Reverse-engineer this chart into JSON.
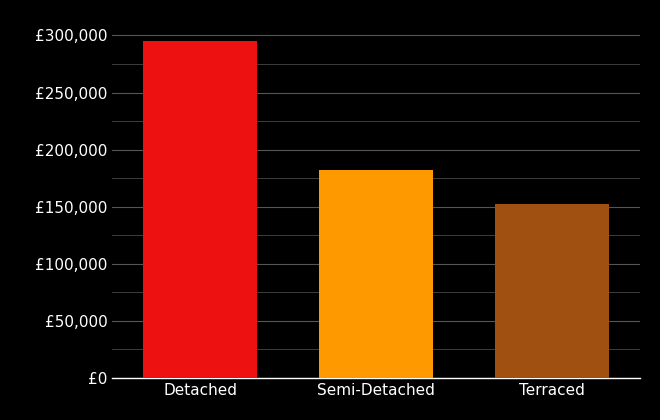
{
  "categories": [
    "Detached",
    "Semi-Detached",
    "Terraced"
  ],
  "values": [
    295000,
    182000,
    152000
  ],
  "bar_colors": [
    "#ee1111",
    "#ff9900",
    "#a05010"
  ],
  "background_color": "#000000",
  "text_color": "#ffffff",
  "grid_color": "#555555",
  "ylim": [
    0,
    320000
  ],
  "yticks_major": [
    0,
    50000,
    100000,
    150000,
    200000,
    250000,
    300000
  ],
  "yticks_minor": [
    25000,
    75000,
    125000,
    175000,
    225000,
    275000
  ],
  "bar_width": 0.65,
  "figsize": [
    6.6,
    4.2
  ],
  "dpi": 100
}
